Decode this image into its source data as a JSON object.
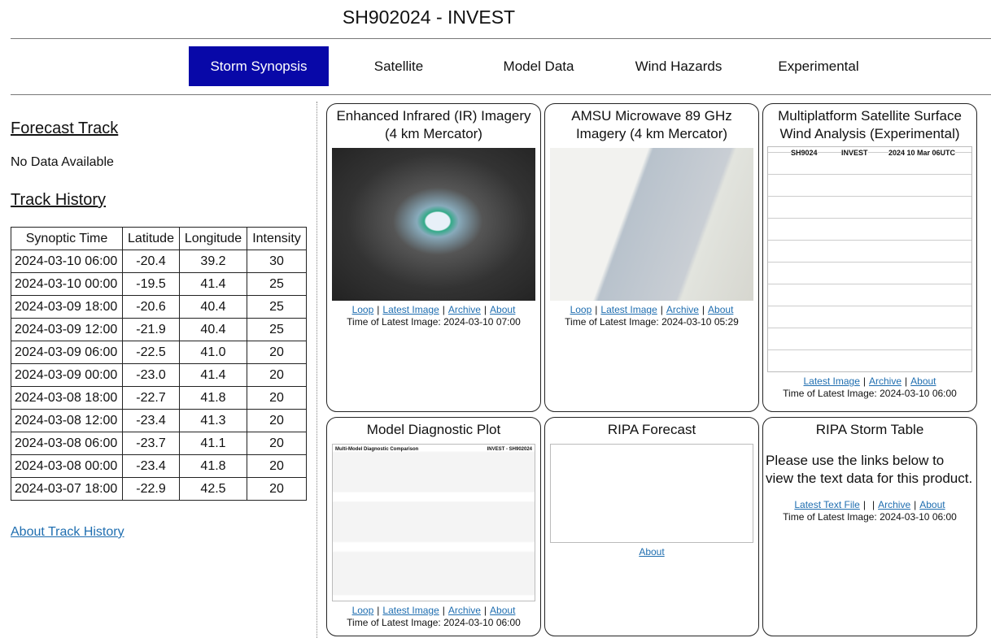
{
  "header": {
    "title": "SH902024 - INVEST"
  },
  "tabs": {
    "items": [
      "Storm Synopsis",
      "Satellite",
      "Model Data",
      "Wind Hazards",
      "Experimental"
    ],
    "active": 0
  },
  "sidebar": {
    "forecast_title": "Forecast Track",
    "forecast_text": "No Data Available",
    "history_title": "Track History",
    "table": {
      "columns": [
        "Synoptic Time",
        "Latitude",
        "Longitude",
        "Intensity"
      ],
      "rows": [
        [
          "2024-03-10 06:00",
          "-20.4",
          "39.2",
          "30"
        ],
        [
          "2024-03-10 00:00",
          "-19.5",
          "41.4",
          "25"
        ],
        [
          "2024-03-09 18:00",
          "-20.6",
          "40.4",
          "25"
        ],
        [
          "2024-03-09 12:00",
          "-21.9",
          "40.4",
          "25"
        ],
        [
          "2024-03-09 06:00",
          "-22.5",
          "41.0",
          "20"
        ],
        [
          "2024-03-09 00:00",
          "-23.0",
          "41.4",
          "20"
        ],
        [
          "2024-03-08 18:00",
          "-22.7",
          "41.8",
          "20"
        ],
        [
          "2024-03-08 12:00",
          "-23.4",
          "41.3",
          "20"
        ],
        [
          "2024-03-08 06:00",
          "-23.7",
          "41.1",
          "20"
        ],
        [
          "2024-03-08 00:00",
          "-23.4",
          "41.8",
          "20"
        ],
        [
          "2024-03-07 18:00",
          "-22.9",
          "42.5",
          "20"
        ]
      ]
    },
    "about_link": "About Track History"
  },
  "separator": "|",
  "panels": [
    {
      "title": "Enhanced Infrared (IR) Imagery (4 km Mercator)",
      "footer": [
        "Loop",
        "|",
        "Latest Image",
        "|",
        "Archive",
        "|",
        "About"
      ],
      "time": "Time of Latest Image: 2024-03-10 07:00"
    },
    {
      "title": "AMSU Microwave 89 GHz Imagery (4 km Mercator)",
      "footer": [
        "Loop",
        "|",
        "Latest Image",
        "|",
        "Archive",
        "|",
        "About"
      ],
      "time": "Time of Latest Image: 2024-03-10 05:29"
    },
    {
      "title": "Multiplatform Satellite Surface Wind Analysis (Experimental)",
      "image_text": [
        "SH9024",
        "INVEST",
        "2024 10 Mar 06UTC"
      ],
      "footer": [
        "Latest Image",
        "|",
        "Archive",
        "|",
        "About"
      ],
      "time": "Time of Latest Image: 2024-03-10 06:00"
    },
    {
      "title": "Model Diagnostic Plot",
      "image_text": [
        "Multi-Model Diagnostic Comparison",
        "INVEST - SH902024"
      ],
      "footer": [
        "Loop",
        "|",
        "Latest Image",
        "|",
        "Archive",
        "|",
        "About"
      ],
      "time": "Time of Latest Image: 2024-03-10 06:00"
    },
    {
      "title": "RIPA Forecast",
      "footer": [
        "About"
      ]
    },
    {
      "title": "RIPA Storm Table",
      "text": "Please use the links below to view the text data for this product.",
      "footer": [
        "Latest Text File",
        "|",
        "|",
        "Archive",
        "|",
        "About"
      ],
      "time": "Time of Latest Image: 2024-03-10 06:00"
    }
  ]
}
